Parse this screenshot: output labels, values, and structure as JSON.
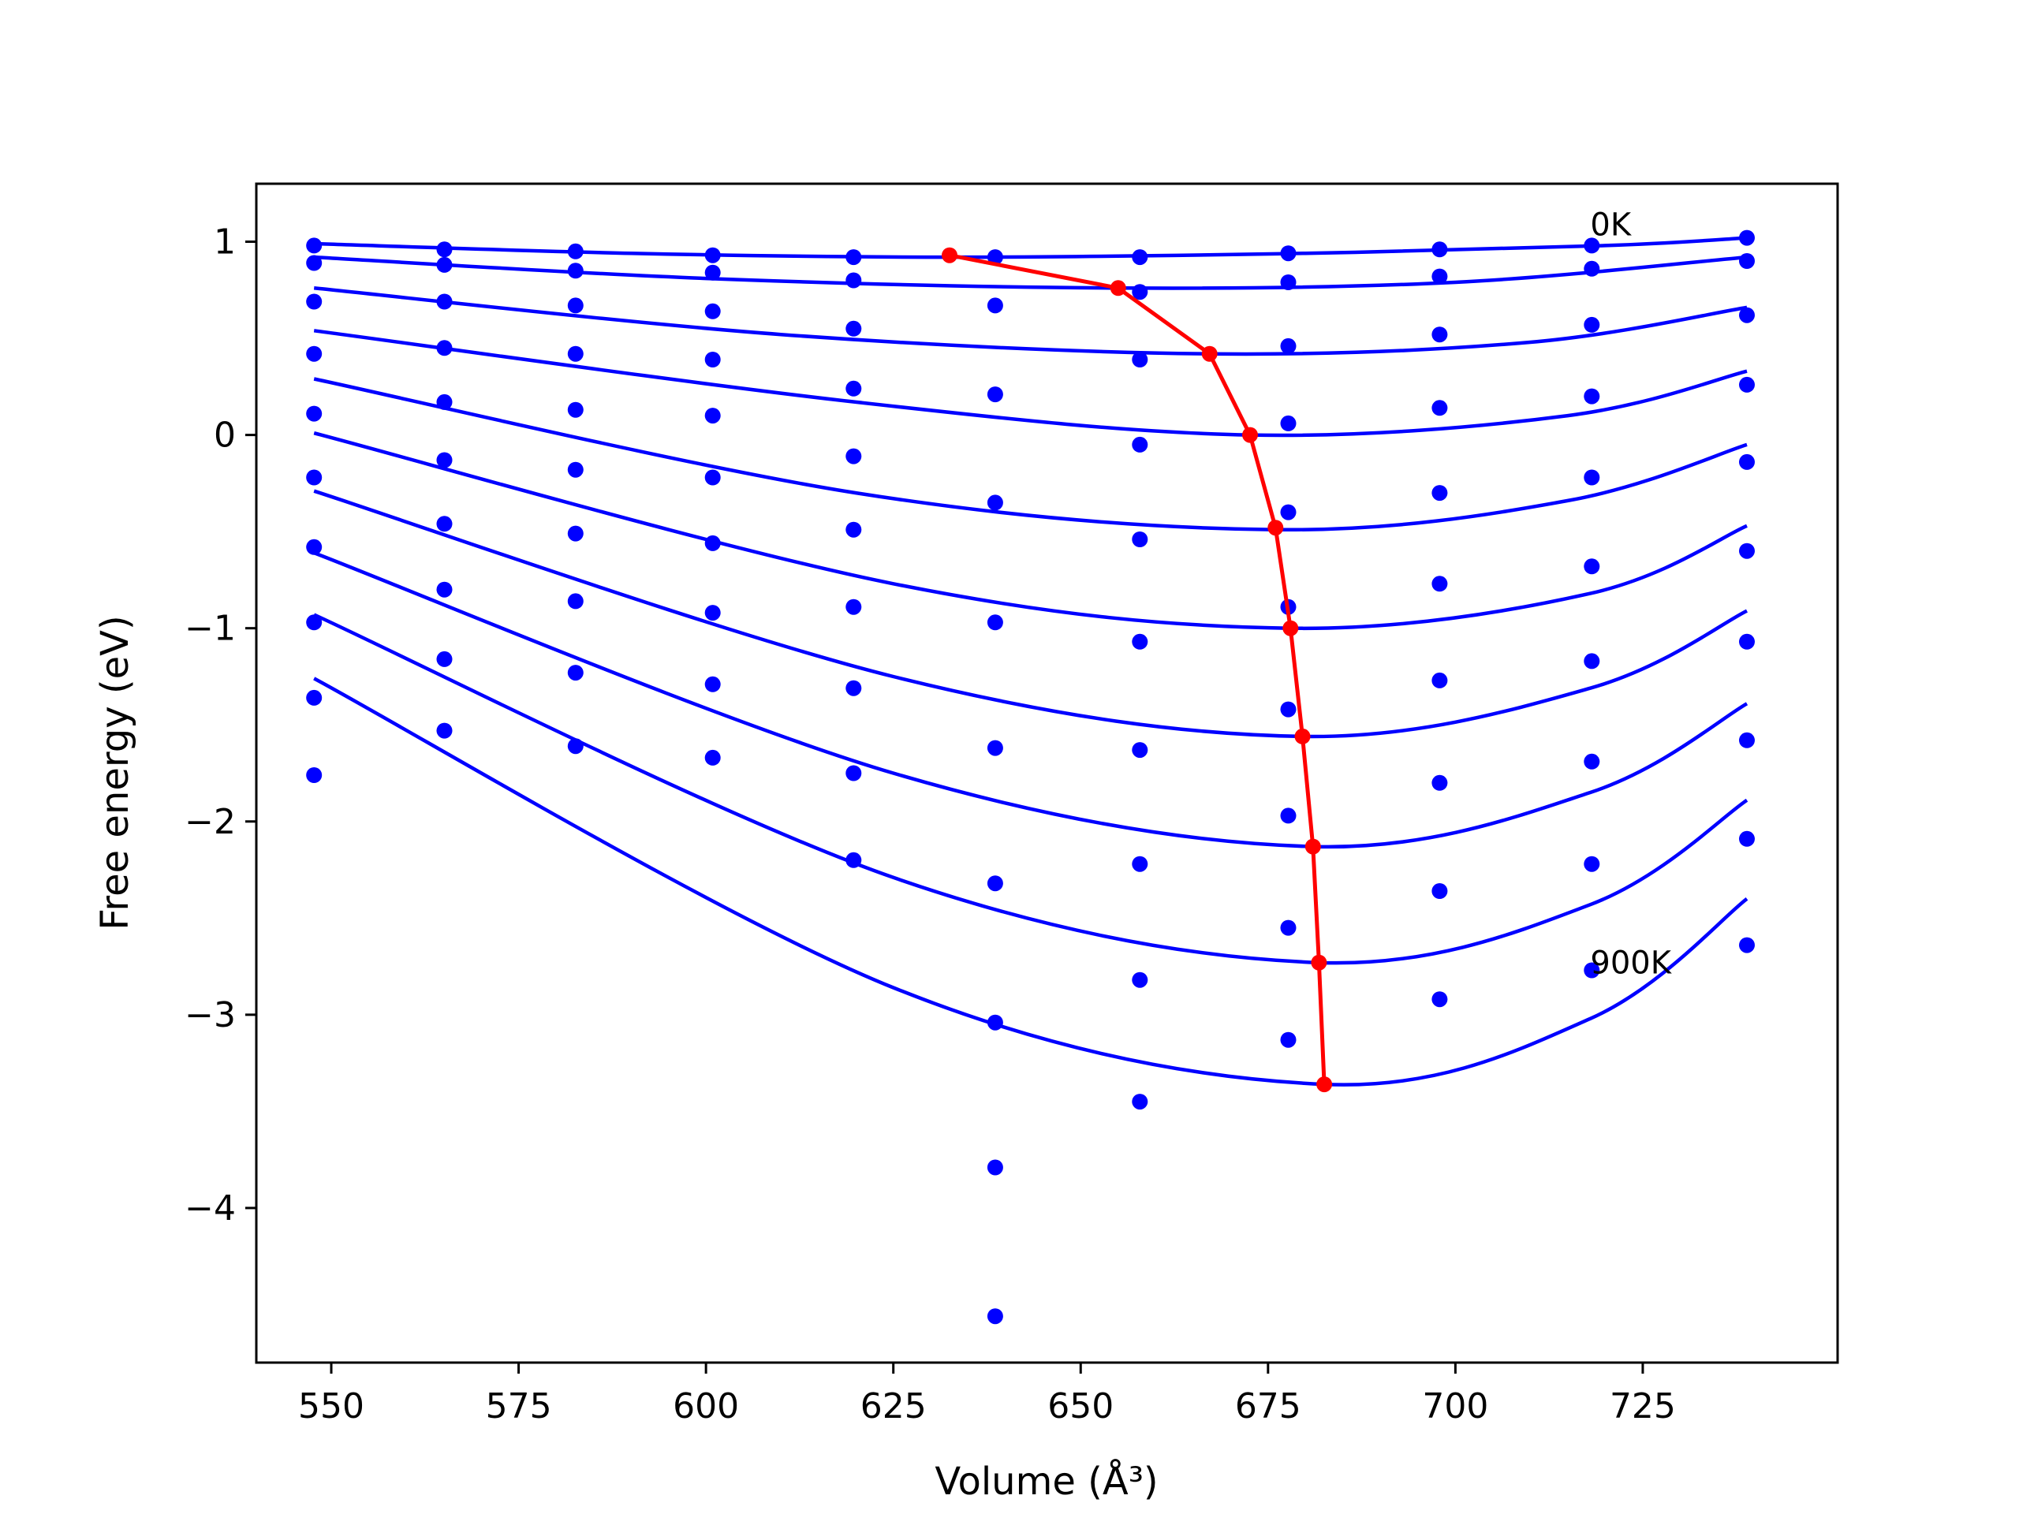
{
  "chart_data": {
    "type": "scatter",
    "xlabel": "Volume (Å³)",
    "ylabel": "Free energy (eV)",
    "xlim": [
      540,
      751
    ],
    "ylim": [
      -4.8,
      1.3
    ],
    "xticks": [
      550,
      575,
      600,
      625,
      650,
      675,
      700,
      725
    ],
    "yticks": [
      1,
      0,
      -1,
      -2,
      -3,
      -4
    ],
    "xtick_labels": [
      "550",
      "575",
      "600",
      "625",
      "650",
      "675",
      "700",
      "725"
    ],
    "ytick_labels": [
      "1",
      "0",
      "−1",
      "−2",
      "−3",
      "−4"
    ],
    "grid": false,
    "legend": false,
    "annotations": [
      {
        "text": "0K",
        "x": 718,
        "y": 1.09
      },
      {
        "text": "900K",
        "x": 718,
        "y": -2.73
      }
    ],
    "volumes": [
      547.7,
      565.1,
      582.6,
      600.9,
      619.7,
      638.6,
      657.9,
      677.7,
      697.9,
      718.2,
      738.9
    ],
    "series": [
      {
        "values": [
          0.98,
          0.96,
          0.95,
          0.93,
          0.92,
          0.92,
          0.92,
          0.94,
          0.96,
          0.98,
          1.02
        ]
      },
      {
        "values": [
          0.89,
          0.88,
          0.85,
          0.84,
          0.8,
          0.67,
          0.74,
          0.79,
          0.82,
          0.86,
          0.9
        ]
      },
      {
        "values": [
          0.69,
          0.69,
          0.67,
          0.64,
          0.55,
          0.21,
          0.39,
          0.46,
          0.52,
          0.57,
          0.62
        ]
      },
      {
        "values": [
          0.42,
          0.45,
          0.42,
          0.39,
          0.24,
          -0.35,
          -0.05,
          0.06,
          0.14,
          0.2,
          0.26
        ]
      },
      {
        "values": [
          0.11,
          0.17,
          0.13,
          0.1,
          -0.11,
          -0.97,
          -0.54,
          -0.4,
          -0.3,
          -0.22,
          -0.14
        ]
      },
      {
        "values": [
          -0.22,
          -0.13,
          -0.18,
          -0.22,
          -0.49,
          -1.62,
          -1.07,
          -0.89,
          -0.77,
          -0.68,
          -0.6
        ]
      },
      {
        "values": [
          -0.58,
          -0.46,
          -0.51,
          -0.56,
          -0.89,
          -2.32,
          -1.63,
          -1.42,
          -1.27,
          -1.17,
          -1.07
        ]
      },
      {
        "values": [
          -0.97,
          -0.8,
          -0.86,
          -0.92,
          -1.31,
          -3.04,
          -2.22,
          -1.97,
          -1.8,
          -1.69,
          -1.58
        ]
      },
      {
        "values": [
          -1.36,
          -1.16,
          -1.23,
          -1.29,
          -1.75,
          -3.79,
          -2.82,
          -2.55,
          -2.36,
          -2.22,
          -2.09
        ]
      },
      {
        "values": [
          -1.76,
          -1.53,
          -1.61,
          -1.67,
          -2.2,
          -4.56,
          -3.45,
          -3.13,
          -2.92,
          -2.77,
          -2.64
        ]
      }
    ],
    "fit_curves": [
      {
        "x": [
          547.7,
          590,
          632.5,
          680,
          720,
          738.9
        ],
        "y": [
          0.99,
          0.94,
          0.92,
          0.94,
          0.98,
          1.02
        ]
      },
      {
        "x": [
          547.7,
          600,
          655,
          700,
          738.9
        ],
        "y": [
          0.92,
          0.81,
          0.76,
          0.79,
          0.92
        ]
      },
      {
        "x": [
          547.7,
          610,
          667,
          710,
          738.9
        ],
        "y": [
          0.76,
          0.52,
          0.42,
          0.48,
          0.66
        ]
      },
      {
        "x": [
          547.7,
          620,
          672.5,
          715,
          738.9
        ],
        "y": [
          0.54,
          0.17,
          0.0,
          0.1,
          0.33
        ]
      },
      {
        "x": [
          547.7,
          620,
          676,
          715,
          738.9
        ],
        "y": [
          0.29,
          -0.3,
          -0.49,
          -0.34,
          -0.05
        ]
      },
      {
        "x": [
          547.7,
          625,
          678,
          718,
          738.9
        ],
        "y": [
          0.01,
          -0.77,
          -1.0,
          -0.82,
          -0.47
        ]
      },
      {
        "x": [
          547.7,
          625,
          679.5,
          718,
          738.9
        ],
        "y": [
          -0.29,
          -1.25,
          -1.56,
          -1.31,
          -0.91
        ]
      },
      {
        "x": [
          547.7,
          625,
          681,
          718,
          738.9
        ],
        "y": [
          -0.61,
          -1.75,
          -2.13,
          -1.85,
          -1.39
        ]
      },
      {
        "x": [
          547.7,
          625,
          681.5,
          718,
          738.9
        ],
        "y": [
          -0.93,
          -2.29,
          -2.73,
          -2.43,
          -1.89
        ]
      },
      {
        "x": [
          547.7,
          625,
          682.5,
          718,
          738.9
        ],
        "y": [
          -1.26,
          -2.86,
          -3.36,
          -3.02,
          -2.4
        ]
      }
    ],
    "equilibrium": {
      "x": [
        632.5,
        655.0,
        667.2,
        672.6,
        676.0,
        678.0,
        679.6,
        681.0,
        681.8,
        682.5
      ],
      "y": [
        0.93,
        0.76,
        0.42,
        0.0,
        -0.48,
        -1.0,
        -1.56,
        -2.13,
        -2.73,
        -3.36
      ]
    },
    "colors": {
      "points": "#0000ff",
      "curves": "#0000ff",
      "equilibrium": "#ff0000",
      "axes": "#000000"
    }
  }
}
